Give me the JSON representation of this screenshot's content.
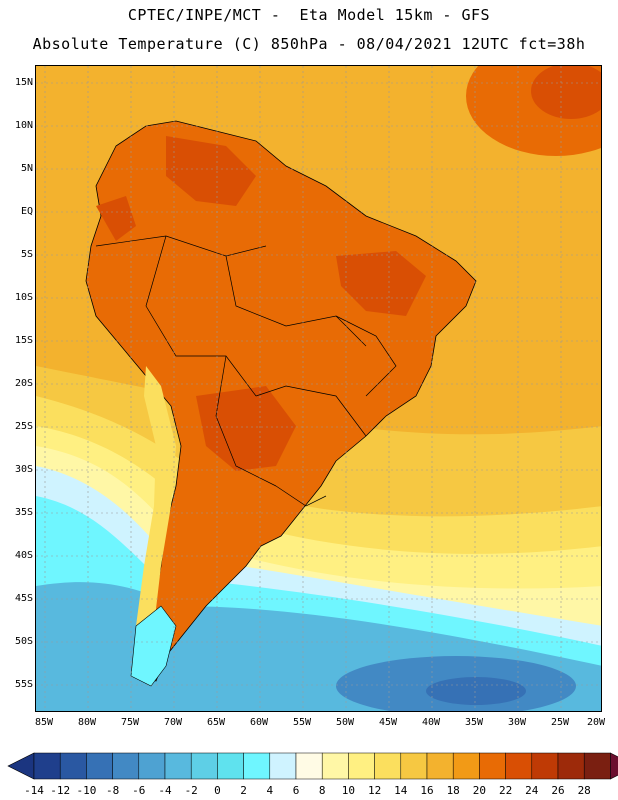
{
  "header": {
    "title_line1": "CPTEC/INPE/MCT -  Eta Model 15km - GFS",
    "title_line2": "Absolute Temperature (C) 850hPa - 08/04/2021 12UTC fct=38h"
  },
  "map": {
    "lat_labels": [
      "15N",
      "10N",
      "5N",
      "EQ",
      "5S",
      "10S",
      "15S",
      "20S",
      "25S",
      "30S",
      "35S",
      "40S",
      "45S",
      "50S",
      "55S"
    ],
    "lon_labels": [
      "85W",
      "80W",
      "75W",
      "70W",
      "65W",
      "60W",
      "55W",
      "50W",
      "45W",
      "40W",
      "35W",
      "30W",
      "25W",
      "20W"
    ]
  },
  "colorbar": {
    "labels": [
      "-14",
      "-12",
      "-10",
      "-8",
      "-6",
      "-4",
      "-2",
      "0",
      "2",
      "4",
      "6",
      "8",
      "10",
      "12",
      "14",
      "16",
      "18",
      "20",
      "22",
      "24",
      "26",
      "28"
    ],
    "colors": [
      "#1f3f8c",
      "#2a58a2",
      "#3671b5",
      "#4289c4",
      "#4ea2d2",
      "#58b9de",
      "#5ecfe6",
      "#5fe2ee",
      "#6ff6ff",
      "#cff3ff",
      "#fffbe5",
      "#fff7a6",
      "#fff082",
      "#fbdf5e",
      "#f6c842",
      "#f3b22e",
      "#f29a16",
      "#e86b05",
      "#d94f04",
      "#bf3a05",
      "#9d2a0a",
      "#7a1f11"
    ],
    "end_low_color": "#1b3580",
    "end_high_color": "#6b0e2e"
  }
}
